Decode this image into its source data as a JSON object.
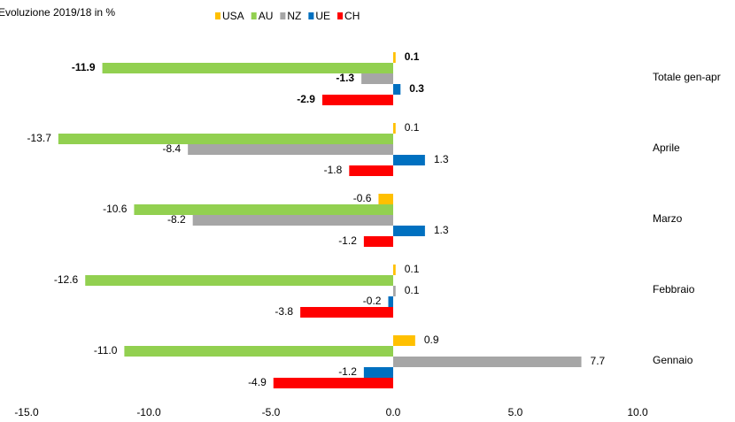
{
  "chart_data": {
    "type": "hbar",
    "title": "Evoluzione  2019/18  in %",
    "categories": [
      "Totale gen-apr",
      "Aprile",
      "Marzo",
      "Febbraio",
      "Gennaio"
    ],
    "series": [
      {
        "name": "USA",
        "color": "#FFC000",
        "values": [
          0.1,
          0.1,
          -0.6,
          0.1,
          0.9
        ],
        "value_labels": [
          "0.1",
          "0.1",
          "-0.6",
          "0.1",
          "0.9"
        ]
      },
      {
        "name": "AU",
        "color": "#92D050",
        "values": [
          -11.9,
          -13.7,
          -10.6,
          -12.6,
          -11.0
        ],
        "value_labels": [
          "-11.9",
          "-13.7",
          "-10.6",
          "-12.6",
          "-11.0"
        ]
      },
      {
        "name": "NZ",
        "color": "#A6A6A6",
        "values": [
          -1.3,
          -8.4,
          -8.2,
          0.1,
          7.7
        ],
        "value_labels": [
          "-1.3",
          "-8.4",
          "-8.2",
          "0.1",
          "7.7"
        ]
      },
      {
        "name": "UE",
        "color": "#0070C0",
        "values": [
          0.3,
          1.3,
          1.3,
          -0.2,
          -1.2
        ],
        "value_labels": [
          "0.3",
          "1.3",
          "1.3",
          "-0.2",
          "-1.2"
        ]
      },
      {
        "name": "CH",
        "color": "#FF0000",
        "values": [
          -2.9,
          -1.8,
          -1.2,
          -3.8,
          -4.9
        ],
        "value_labels": [
          "-2.9",
          "-1.8",
          "-1.2",
          "-3.8",
          "-4.9"
        ]
      }
    ],
    "xlim": [
      -15,
      10
    ],
    "xticks": [
      {
        "value": -15,
        "label": "-15.0"
      },
      {
        "value": -10,
        "label": "-10.0"
      },
      {
        "value": -5,
        "label": "-5.0"
      },
      {
        "value": 0,
        "label": "0.0"
      },
      {
        "value": 5,
        "label": "5.0"
      },
      {
        "value": 10,
        "label": "10.0"
      }
    ],
    "legend": "top"
  }
}
